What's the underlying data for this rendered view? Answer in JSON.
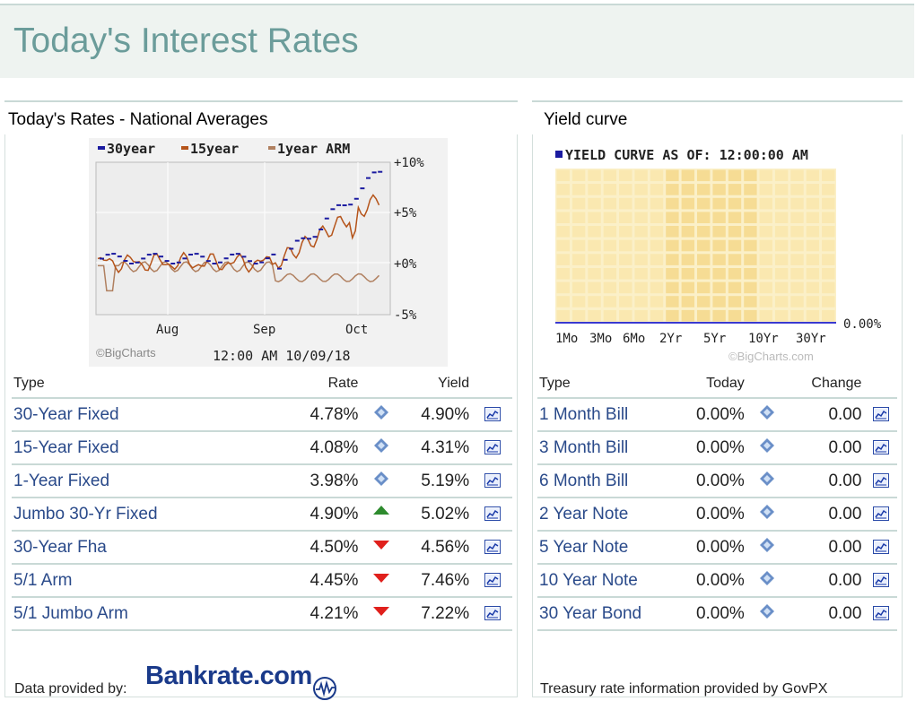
{
  "page": {
    "title": "Today's Interest Rates"
  },
  "colors": {
    "header_bg": "#eef3f0",
    "title": "#6b9c9a",
    "link": "#2a4a8a",
    "up": "#2e8b2e",
    "down": "#e0201c",
    "flat": "#6a8fc8"
  },
  "left_panel": {
    "title": "Today's Rates - National Averages",
    "chart": {
      "legend": [
        "30year",
        "15year",
        "1year ARM"
      ],
      "y_ticks": [
        "+10%",
        "+5%",
        "+0%",
        "-5%"
      ],
      "x_ticks": [
        "Aug",
        "Sep",
        "Oct"
      ],
      "credit": "©BigCharts",
      "timestamp": "12:00 AM 10/09/18"
    },
    "columns": [
      "Type",
      "Rate",
      "Yield"
    ],
    "rows": [
      {
        "type": "30-Year Fixed",
        "rate": "4.78%",
        "trend": "flat-icon",
        "yield": "4.90%"
      },
      {
        "type": "15-Year Fixed",
        "rate": "4.08%",
        "trend": "flat-icon",
        "yield": "4.31%"
      },
      {
        "type": "1-Year Fixed",
        "rate": "3.98%",
        "trend": "flat-icon",
        "yield": "5.19%"
      },
      {
        "type": "Jumbo 30-Yr Fixed",
        "rate": "4.90%",
        "trend": "up-arrow-icon",
        "yield": "5.02%"
      },
      {
        "type": "30-Year Fha",
        "rate": "4.50%",
        "trend": "down-arrow-icon",
        "yield": "4.56%"
      },
      {
        "type": "5/1 Arm",
        "rate": "4.45%",
        "trend": "down-arrow-icon",
        "yield": "7.46%"
      },
      {
        "type": "5/1 Jumbo Arm",
        "rate": "4.21%",
        "trend": "down-arrow-icon",
        "yield": "7.22%"
      }
    ],
    "footer_label": "Data provided by:",
    "logo_text": "Bankrate.com"
  },
  "right_panel": {
    "title": "Yield curve",
    "chart": {
      "title": "YIELD CURVE AS OF: 12:00:00 AM",
      "x_ticks": [
        "1Mo",
        "3Mo",
        "6Mo",
        "2Yr",
        "5Yr",
        "10Yr",
        "30Yr"
      ],
      "y_tick": "0.00%",
      "credit": "©BigCharts.com"
    },
    "columns": [
      "Type",
      "Today",
      "Change"
    ],
    "rows": [
      {
        "type": "1 Month Bill",
        "today": "0.00%",
        "trend": "flat-icon",
        "change": "0.00"
      },
      {
        "type": "3 Month Bill",
        "today": "0.00%",
        "trend": "flat-icon",
        "change": "0.00"
      },
      {
        "type": "6 Month Bill",
        "today": "0.00%",
        "trend": "flat-icon",
        "change": "0.00"
      },
      {
        "type": "2 Year Note",
        "today": "0.00%",
        "trend": "flat-icon",
        "change": "0.00"
      },
      {
        "type": "5 Year Note",
        "today": "0.00%",
        "trend": "flat-icon",
        "change": "0.00"
      },
      {
        "type": "10 Year Note",
        "today": "0.00%",
        "trend": "flat-icon",
        "change": "0.00"
      },
      {
        "type": "30 Year Bond",
        "today": "0.00%",
        "trend": "flat-icon",
        "change": "0.00"
      }
    ],
    "footer_label": "Treasury rate information provided by GovPX"
  }
}
